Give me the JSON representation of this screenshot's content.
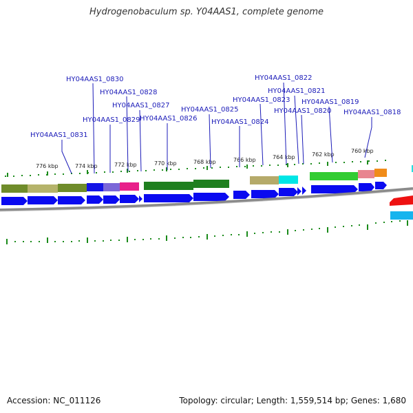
{
  "title": "Hydrogenobaculum sp. Y04AAS1, complete genome",
  "accession_text": "Accession: NC_011126",
  "summary_text": "Topology: circular; Length: 1,559,514 bp; Genes: 1,680",
  "colors": {
    "gene_arrow": "#0a0af0",
    "label": "#1a1ab8",
    "tick": "#1a8a1a",
    "backbone": "#8a8a8a"
  },
  "genes": [
    {
      "id": "g0831",
      "label": "HY04AAS1_0831"
    },
    {
      "id": "g0830",
      "label": "HY04AAS1_0830"
    },
    {
      "id": "g0829",
      "label": "HY04AAS1_0829"
    },
    {
      "id": "g0828",
      "label": "HY04AAS1_0828"
    },
    {
      "id": "g0827",
      "label": "HY04AAS1_0827"
    },
    {
      "id": "g0826",
      "label": "HY04AAS1_0826"
    },
    {
      "id": "g0825",
      "label": "HY04AAS1_0825"
    },
    {
      "id": "g0824",
      "label": "HY04AAS1_0824"
    },
    {
      "id": "g0823",
      "label": "HY04AAS1_0823"
    },
    {
      "id": "g0822",
      "label": "HY04AAS1_0822"
    },
    {
      "id": "g0821",
      "label": "HY04AAS1_0821"
    },
    {
      "id": "g0820",
      "label": "HY04AAS1_0820"
    },
    {
      "id": "g0819",
      "label": "HY04AAS1_0819"
    },
    {
      "id": "g0818",
      "label": "HY04AAS1_0818"
    }
  ],
  "ticks": [
    "776 kbp",
    "774 kbp",
    "772 kbp",
    "770 kbp",
    "768 kbp",
    "766 kbp",
    "764 kbp",
    "762 kbp",
    "760 kbp"
  ]
}
